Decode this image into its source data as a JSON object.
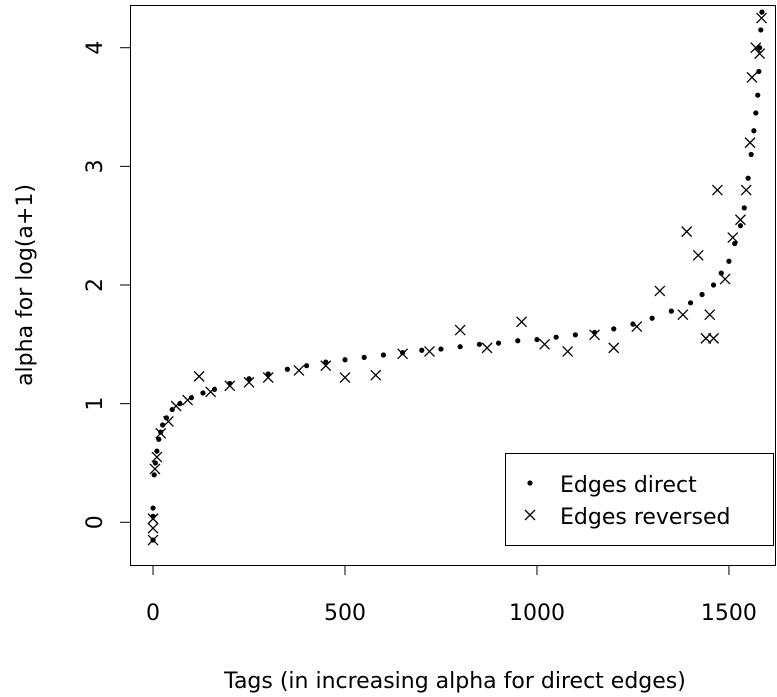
{
  "chart_data": {
    "type": "scatter",
    "x_label": "Tags (in increasing alpha for direct edges)",
    "y_label": "alpha for log(a+1)",
    "xlim": [
      -60,
      1620
    ],
    "ylim": [
      -0.36,
      4.36
    ],
    "xticks": [
      0,
      500,
      1000,
      1500
    ],
    "yticks": [
      0,
      1,
      2,
      3,
      4
    ],
    "legend": "bottom-right",
    "series": [
      {
        "name": "Edges direct",
        "color": "#000000",
        "marker": "dot",
        "x": [
          0,
          0,
          0,
          3,
          6,
          10,
          15,
          20,
          25,
          35,
          50,
          70,
          100,
          130,
          160,
          200,
          250,
          300,
          350,
          400,
          450,
          500,
          550,
          600,
          650,
          700,
          750,
          800,
          850,
          900,
          950,
          1000,
          1050,
          1100,
          1150,
          1200,
          1250,
          1300,
          1350,
          1400,
          1430,
          1460,
          1480,
          1500,
          1515,
          1530,
          1540,
          1550,
          1558,
          1565,
          1570,
          1575,
          1578,
          1580,
          1583,
          1586
        ],
        "values": [
          -0.15,
          0.05,
          0.12,
          0.4,
          0.5,
          0.6,
          0.7,
          0.76,
          0.82,
          0.88,
          0.95,
          1.0,
          1.05,
          1.09,
          1.12,
          1.17,
          1.21,
          1.25,
          1.29,
          1.32,
          1.35,
          1.37,
          1.39,
          1.41,
          1.43,
          1.45,
          1.46,
          1.48,
          1.5,
          1.51,
          1.53,
          1.54,
          1.56,
          1.58,
          1.6,
          1.63,
          1.67,
          1.72,
          1.78,
          1.85,
          1.92,
          2.0,
          2.1,
          2.2,
          2.35,
          2.5,
          2.65,
          2.9,
          3.1,
          3.3,
          3.45,
          3.6,
          3.8,
          4.0,
          4.15,
          4.3
        ]
      },
      {
        "name": "Edges reversed",
        "color": "#000000",
        "marker": "x",
        "x": [
          0,
          0,
          0,
          5,
          10,
          20,
          40,
          60,
          90,
          120,
          150,
          200,
          250,
          300,
          380,
          450,
          500,
          580,
          650,
          720,
          800,
          870,
          960,
          1020,
          1080,
          1150,
          1200,
          1260,
          1320,
          1380,
          1390,
          1420,
          1440,
          1450,
          1460,
          1470,
          1490,
          1510,
          1530,
          1545,
          1555,
          1560,
          1570,
          1580,
          1585
        ],
        "values": [
          -0.15,
          -0.05,
          0.03,
          0.45,
          0.55,
          0.75,
          0.85,
          0.98,
          1.03,
          1.23,
          1.1,
          1.15,
          1.18,
          1.22,
          1.28,
          1.32,
          1.22,
          1.24,
          1.42,
          1.44,
          1.62,
          1.47,
          1.69,
          1.5,
          1.44,
          1.58,
          1.47,
          1.65,
          1.95,
          1.75,
          2.45,
          2.25,
          1.55,
          1.75,
          1.55,
          2.8,
          2.05,
          2.4,
          2.55,
          2.8,
          3.2,
          3.75,
          4.0,
          3.95,
          4.25
        ]
      }
    ]
  }
}
